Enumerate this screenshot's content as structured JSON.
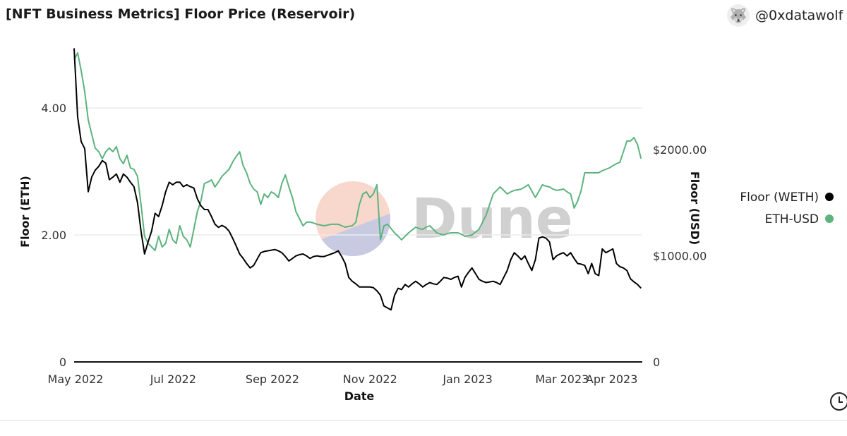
{
  "header": {
    "title": "[NFT Business Metrics] Floor Price (Reservoir)",
    "author": "@0xdatawolf"
  },
  "watermark": "Dune",
  "chart_data": {
    "type": "line",
    "title": "[NFT Business Metrics] Floor Price (Reservoir)",
    "xlabel": "Date",
    "ylabel_left": "Floor (ETH)",
    "ylabel_right": "Floor (USD)",
    "x_start": "2022-05-01",
    "x_step_days": 2.2,
    "x_range_days": [
      0,
      355
    ],
    "x_ticks": [
      {
        "label": "May 2022",
        "day": 0
      },
      {
        "label": "Jul 2022",
        "day": 61
      },
      {
        "label": "Sep 2022",
        "day": 123
      },
      {
        "label": "Nov 2022",
        "day": 184
      },
      {
        "label": "Jan 2023",
        "day": 245
      },
      {
        "label": "Mar 2023",
        "day": 304
      },
      {
        "label": "Apr 2023",
        "day": 335
      }
    ],
    "ylim_left": [
      0,
      4.9
    ],
    "ylim_right": [
      0,
      2930
    ],
    "y_ticks_left": [
      {
        "label": "0",
        "value": 0
      },
      {
        "label": "2.00",
        "value": 2
      },
      {
        "label": "4.00",
        "value": 4
      }
    ],
    "y_ticks_right": [
      {
        "label": "0",
        "value": 0
      },
      {
        "label": "$1000.00",
        "value": 1000
      },
      {
        "label": "$2000.00",
        "value": 2000
      }
    ],
    "grid": true,
    "legend_position": "right",
    "series": [
      {
        "name": "Floor (WETH)",
        "axis": "left",
        "color": "#000000",
        "values": [
          4.94,
          3.86,
          3.47,
          3.36,
          2.68,
          2.91,
          3.02,
          3.08,
          3.17,
          3.13,
          2.87,
          2.91,
          2.96,
          2.83,
          2.96,
          2.91,
          2.83,
          2.76,
          2.51,
          2.06,
          1.7,
          1.89,
          2.06,
          2.34,
          2.29,
          2.46,
          2.68,
          2.83,
          2.79,
          2.83,
          2.83,
          2.76,
          2.79,
          2.76,
          2.74,
          2.57,
          2.46,
          2.4,
          2.4,
          2.29,
          2.17,
          2.12,
          2.15,
          2.12,
          2.06,
          1.95,
          1.83,
          1.7,
          1.63,
          1.55,
          1.48,
          1.52,
          1.62,
          1.72,
          1.74,
          1.75,
          1.76,
          1.77,
          1.75,
          1.72,
          1.66,
          1.59,
          1.63,
          1.67,
          1.69,
          1.7,
          1.67,
          1.63,
          1.66,
          1.67,
          1.66,
          1.66,
          1.68,
          1.7,
          1.72,
          1.75,
          1.66,
          1.55,
          1.33,
          1.27,
          1.23,
          1.18,
          1.18,
          1.18,
          1.18,
          1.17,
          1.12,
          1.05,
          0.88,
          0.85,
          0.82,
          1.05,
          1.16,
          1.14,
          1.22,
          1.18,
          1.23,
          1.27,
          1.23,
          1.18,
          1.22,
          1.25,
          1.23,
          1.22,
          1.27,
          1.33,
          1.32,
          1.3,
          1.33,
          1.35,
          1.18,
          1.33,
          1.41,
          1.48,
          1.39,
          1.3,
          1.27,
          1.25,
          1.26,
          1.27,
          1.25,
          1.22,
          1.33,
          1.44,
          1.61,
          1.72,
          1.67,
          1.61,
          1.67,
          1.55,
          1.44,
          1.61,
          1.95,
          1.97,
          1.95,
          1.89,
          1.61,
          1.67,
          1.7,
          1.72,
          1.67,
          1.72,
          1.63,
          1.55,
          1.54,
          1.52,
          1.39,
          1.55,
          1.39,
          1.36,
          1.78,
          1.72,
          1.75,
          1.78,
          1.55,
          1.5,
          1.48,
          1.44,
          1.31,
          1.26,
          1.22,
          1.16
        ]
      },
      {
        "name": "ETH-USD",
        "axis": "right",
        "color": "#5db37e",
        "values": [
          2844,
          2911,
          2744,
          2545,
          2279,
          2146,
          2013,
          1980,
          1914,
          1980,
          2013,
          1980,
          2027,
          1914,
          1867,
          1947,
          1827,
          1814,
          1748,
          1482,
          1183,
          1116,
          1083,
          1050,
          1183,
          1083,
          1116,
          1249,
          1150,
          1116,
          1282,
          1183,
          1150,
          1083,
          1249,
          1415,
          1515,
          1681,
          1694,
          1714,
          1648,
          1694,
          1748,
          1781,
          1814,
          1881,
          1934,
          1980,
          1847,
          1781,
          1681,
          1628,
          1601,
          1482,
          1582,
          1548,
          1601,
          1582,
          1548,
          1681,
          1761,
          1648,
          1548,
          1415,
          1349,
          1282,
          1316,
          1316,
          1309,
          1296,
          1289,
          1282,
          1289,
          1296,
          1296,
          1296,
          1282,
          1269,
          1276,
          1282,
          1316,
          1482,
          1582,
          1601,
          1548,
          1582,
          1668,
          1150,
          1282,
          1296,
          1256,
          1216,
          1183,
          1150,
          1183,
          1216,
          1243,
          1269,
          1256,
          1249,
          1269,
          1282,
          1249,
          1216,
          1203,
          1196,
          1209,
          1216,
          1216,
          1216,
          1203,
          1183,
          1189,
          1196,
          1223,
          1249,
          1316,
          1382,
          1482,
          1582,
          1615,
          1648,
          1615,
          1582,
          1601,
          1615,
          1621,
          1628,
          1648,
          1668,
          1608,
          1548,
          1608,
          1668,
          1655,
          1648,
          1628,
          1615,
          1621,
          1628,
          1601,
          1582,
          1449,
          1515,
          1615,
          1781,
          1781,
          1781,
          1781,
          1781,
          1801,
          1814,
          1827,
          1847,
          1867,
          1881,
          1980,
          2080,
          2080,
          2113,
          2047,
          1914
        ]
      }
    ]
  }
}
